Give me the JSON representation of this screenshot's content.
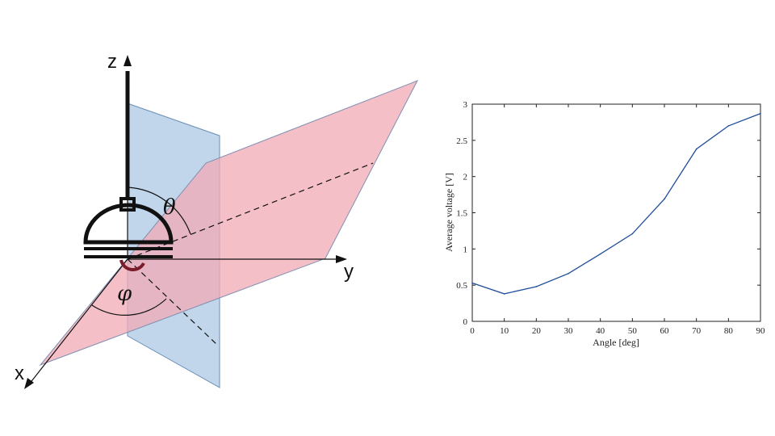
{
  "diagram": {
    "axis_labels": {
      "z": "z",
      "y": "y",
      "x": "x"
    },
    "angle_labels": {
      "theta": "θ",
      "phi": "φ"
    },
    "colors": {
      "vertical_plane": "#b6cfe6",
      "tilted_plane": "#f2a9b5",
      "overlap": "#d9a3b8",
      "device": "#111111",
      "axes": "#111111"
    }
  },
  "chart_data": {
    "type": "line",
    "title": "",
    "xlabel": "Angle [deg]",
    "ylabel": "Average voltage [V]",
    "x": [
      0,
      10,
      20,
      30,
      40,
      50,
      60,
      70,
      80,
      90
    ],
    "series": [
      {
        "values": [
          0.53,
          0.38,
          0.48,
          0.66,
          0.93,
          1.21,
          1.69,
          2.38,
          2.7,
          2.87
        ],
        "color": "#1f4e9a"
      }
    ],
    "xlim": [
      0,
      90
    ],
    "ylim": [
      0,
      3
    ],
    "xticks": [
      "0",
      "10",
      "20",
      "30",
      "40",
      "50",
      "60",
      "70",
      "80",
      "90"
    ],
    "yticks": [
      "0",
      "0.5",
      "1",
      "1.5",
      "2",
      "2.5",
      "3"
    ],
    "grid": false,
    "legend": "none"
  }
}
